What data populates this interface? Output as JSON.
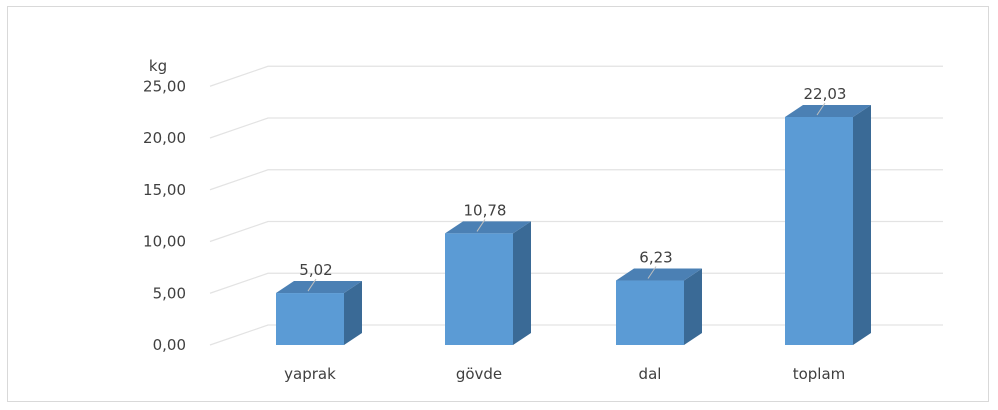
{
  "chart_data": {
    "type": "bar",
    "style": "3d-column",
    "categories": [
      "yaprak",
      "gövde",
      "dal",
      "toplam"
    ],
    "values": [
      5.02,
      10.78,
      6.23,
      22.03
    ],
    "data_labels": [
      "5,02",
      "10,78",
      "6,23",
      "22,03"
    ],
    "y_unit_label": "kg",
    "y_tick_labels": [
      "0,00",
      "5,00",
      "10,00",
      "15,00",
      "20,00",
      "25,00"
    ],
    "y_ticks": [
      0,
      5,
      10,
      15,
      20,
      25
    ],
    "ylim": [
      0,
      25
    ],
    "grid": true,
    "legend": "none",
    "colors": {
      "bar_front": "#5b9bd5",
      "bar_side": "#3a6a96",
      "bar_top": "#4b80b4",
      "grid": "#e3e3e3",
      "text": "#404040"
    }
  }
}
